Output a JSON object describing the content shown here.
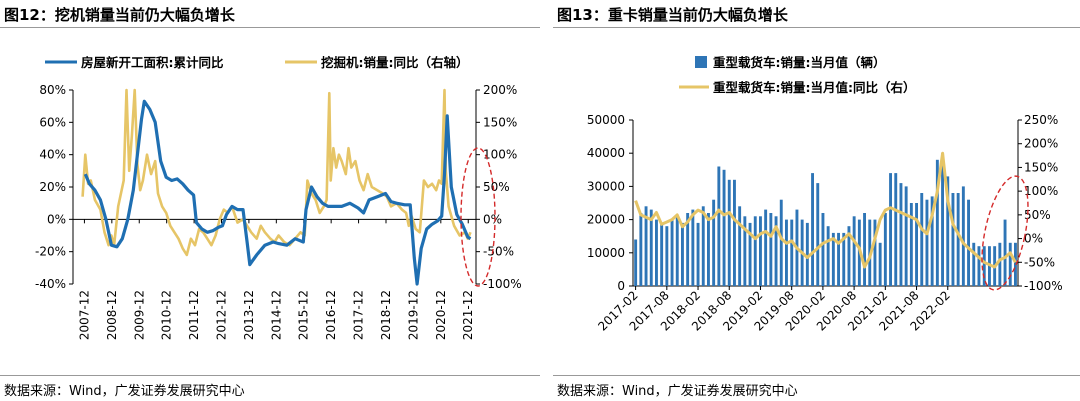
{
  "figures": [
    {
      "title": "图12：挖机销量当前仍大幅负增长",
      "source": "数据来源：Wind，广发证券发展研究中心",
      "chart_data": {
        "type": "line",
        "legend_position": "top",
        "grid": false,
        "x_ticks": [
          "2007-12",
          "2008-12",
          "2009-12",
          "2010-12",
          "2011-12",
          "2012-12",
          "2013-12",
          "2014-12",
          "2015-12",
          "2016-12",
          "2017-12",
          "2018-12",
          "2019-12",
          "2020-12",
          "2021-12"
        ],
        "y_left": {
          "ticks": [
            "80%",
            "60%",
            "40%",
            "20%",
            "0%",
            "-20%",
            "-40%"
          ],
          "range": [
            -40,
            80
          ]
        },
        "y_right": {
          "ticks": [
            "200%",
            "150%",
            "100%",
            "50%",
            "0%",
            "-50%",
            "-100%"
          ],
          "range": [
            -100,
            200
          ]
        },
        "series": [
          {
            "name": "房屋新开工面积:累计同比",
            "axis": "left",
            "color": "#1f6fb2",
            "points": [
              [
                2007.95,
                28
              ],
              [
                2008.1,
                22
              ],
              [
                2008.3,
                18
              ],
              [
                2008.5,
                12
              ],
              [
                2008.7,
                0
              ],
              [
                2008.9,
                -16
              ],
              [
                2009.1,
                -17
              ],
              [
                2009.3,
                -12
              ],
              [
                2009.5,
                0
              ],
              [
                2009.7,
                18
              ],
              [
                2009.85,
                40
              ],
              [
                2010.0,
                62
              ],
              [
                2010.1,
                73
              ],
              [
                2010.3,
                68
              ],
              [
                2010.5,
                60
              ],
              [
                2010.7,
                36
              ],
              [
                2010.9,
                26
              ],
              [
                2011.1,
                24
              ],
              [
                2011.3,
                25
              ],
              [
                2011.5,
                22
              ],
              [
                2011.7,
                18
              ],
              [
                2011.9,
                15
              ],
              [
                2012.0,
                -2
              ],
              [
                2012.2,
                -6
              ],
              [
                2012.4,
                -8
              ],
              [
                2012.6,
                -7
              ],
              [
                2012.8,
                -5
              ],
              [
                2012.95,
                -4
              ],
              [
                2013.1,
                3
              ],
              [
                2013.3,
                8
              ],
              [
                2013.5,
                6
              ],
              [
                2013.7,
                6
              ],
              [
                2013.85,
                -14
              ],
              [
                2013.95,
                -28
              ],
              [
                2014.2,
                -22
              ],
              [
                2014.5,
                -16
              ],
              [
                2014.8,
                -14
              ],
              [
                2015.0,
                -15
              ],
              [
                2015.3,
                -16
              ],
              [
                2015.6,
                -12
              ],
              [
                2015.9,
                -14
              ],
              [
                2016.0,
                6
              ],
              [
                2016.2,
                20
              ],
              [
                2016.4,
                14
              ],
              [
                2016.6,
                10
              ],
              [
                2016.8,
                8
              ],
              [
                2017.0,
                8
              ],
              [
                2017.3,
                8
              ],
              [
                2017.6,
                10
              ],
              [
                2017.9,
                7
              ],
              [
                2018.1,
                4
              ],
              [
                2018.3,
                12
              ],
              [
                2018.6,
                14
              ],
              [
                2018.9,
                16
              ],
              [
                2019.1,
                11
              ],
              [
                2019.3,
                10
              ],
              [
                2019.6,
                9
              ],
              [
                2019.8,
                9
              ],
              [
                2019.95,
                -24
              ],
              [
                2020.05,
                -40
              ],
              [
                2020.2,
                -18
              ],
              [
                2020.4,
                -6
              ],
              [
                2020.6,
                -3
              ],
              [
                2020.8,
                -1
              ],
              [
                2020.95,
                2
              ],
              [
                2021.05,
                28
              ],
              [
                2021.15,
                64
              ],
              [
                2021.3,
                20
              ],
              [
                2021.5,
                3
              ],
              [
                2021.7,
                -3
              ],
              [
                2021.9,
                -11
              ],
              [
                2022.0,
                -12
              ]
            ]
          },
          {
            "name": "挖掘机:销量:同比（右轴）",
            "axis": "right",
            "color": "#e6c567",
            "points": [
              [
                2007.85,
                35
              ],
              [
                2007.95,
                100
              ],
              [
                2008.05,
                55
              ],
              [
                2008.15,
                60
              ],
              [
                2008.3,
                30
              ],
              [
                2008.5,
                15
              ],
              [
                2008.65,
                -20
              ],
              [
                2008.8,
                -40
              ],
              [
                2008.9,
                -25
              ],
              [
                2009.0,
                -40
              ],
              [
                2009.15,
                20
              ],
              [
                2009.35,
                60
              ],
              [
                2009.45,
                200
              ],
              [
                2009.55,
                75
              ],
              [
                2009.65,
                130
              ],
              [
                2009.75,
                200
              ],
              [
                2009.85,
                85
              ],
              [
                2009.95,
                45
              ],
              [
                2010.05,
                60
              ],
              [
                2010.2,
                100
              ],
              [
                2010.35,
                70
              ],
              [
                2010.5,
                90
              ],
              [
                2010.6,
                40
              ],
              [
                2010.75,
                20
              ],
              [
                2010.9,
                10
              ],
              [
                2011.05,
                -10
              ],
              [
                2011.2,
                -20
              ],
              [
                2011.35,
                -30
              ],
              [
                2011.5,
                -45
              ],
              [
                2011.65,
                -55
              ],
              [
                2011.8,
                -30
              ],
              [
                2011.95,
                -40
              ],
              [
                2012.1,
                -15
              ],
              [
                2012.25,
                -20
              ],
              [
                2012.4,
                -30
              ],
              [
                2012.55,
                -40
              ],
              [
                2012.7,
                -25
              ],
              [
                2012.85,
                0
              ],
              [
                2013.0,
                15
              ],
              [
                2013.15,
                10
              ],
              [
                2013.3,
                20
              ],
              [
                2013.5,
                -5
              ],
              [
                2013.7,
                0
              ],
              [
                2013.85,
                -10
              ],
              [
                2014.0,
                -20
              ],
              [
                2014.2,
                -30
              ],
              [
                2014.35,
                -10
              ],
              [
                2014.5,
                -20
              ],
              [
                2014.7,
                -30
              ],
              [
                2014.85,
                -35
              ],
              [
                2015.0,
                -25
              ],
              [
                2015.2,
                -35
              ],
              [
                2015.4,
                -40
              ],
              [
                2015.6,
                -30
              ],
              [
                2015.8,
                -20
              ],
              [
                2015.95,
                -25
              ],
              [
                2016.05,
                60
              ],
              [
                2016.2,
                40
              ],
              [
                2016.35,
                30
              ],
              [
                2016.5,
                10
              ],
              [
                2016.65,
                20
              ],
              [
                2016.75,
                30
              ],
              [
                2016.85,
                195
              ],
              [
                2016.9,
                60
              ],
              [
                2017.0,
                110
              ],
              [
                2017.1,
                80
              ],
              [
                2017.2,
                100
              ],
              [
                2017.3,
                90
              ],
              [
                2017.45,
                70
              ],
              [
                2017.55,
                110
              ],
              [
                2017.65,
                80
              ],
              [
                2017.8,
                90
              ],
              [
                2017.95,
                60
              ],
              [
                2018.1,
                45
              ],
              [
                2018.25,
                70
              ],
              [
                2018.4,
                50
              ],
              [
                2018.6,
                45
              ],
              [
                2018.8,
                40
              ],
              [
                2018.95,
                35
              ],
              [
                2019.1,
                20
              ],
              [
                2019.3,
                25
              ],
              [
                2019.5,
                15
              ],
              [
                2019.65,
                10
              ],
              [
                2019.75,
                -10
              ],
              [
                2019.85,
                5
              ],
              [
                2020.0,
                -15
              ],
              [
                2020.15,
                -20
              ],
              [
                2020.3,
                60
              ],
              [
                2020.45,
                50
              ],
              [
                2020.6,
                55
              ],
              [
                2020.75,
                45
              ],
              [
                2020.85,
                60
              ],
              [
                2020.95,
                55
              ],
              [
                2021.0,
                130
              ],
              [
                2021.05,
                200
              ],
              [
                2021.1,
                75
              ],
              [
                2021.2,
                20
              ],
              [
                2021.4,
                -10
              ],
              [
                2021.6,
                -25
              ],
              [
                2021.8,
                -20
              ],
              [
                2021.9,
                -30
              ],
              [
                2022.0,
                -20
              ]
            ]
          }
        ]
      }
    },
    {
      "title": "图13：重卡销量当前仍大幅负增长",
      "source": "数据来源：Wind，广发证券发展研究中心",
      "chart_data": {
        "type": "bar",
        "legend_position": "top",
        "grid": false,
        "x_ticks": [
          "2017-02",
          "2017-08",
          "2018-02",
          "2018-08",
          "2019-02",
          "2019-08",
          "2020-02",
          "2020-08",
          "2021-02",
          "2021-08",
          "2022-02"
        ],
        "y_left": {
          "ticks": [
            "50000",
            "40000",
            "30000",
            "20000",
            "10000",
            "0"
          ],
          "range": [
            0,
            50000
          ]
        },
        "y_right": {
          "ticks": [
            "250%",
            "200%",
            "150%",
            "100%",
            "50%",
            "0%",
            "-50%",
            "-100%"
          ],
          "range": [
            -100,
            250
          ]
        },
        "series": [
          {
            "name": "重型载货车:销量:当月值（辆）",
            "axis": "left",
            "type": "bar",
            "color": "#2e75b6",
            "values": [
              14000,
              22000,
              24000,
              23000,
              20000,
              19000,
              18000,
              20000,
              21000,
              19000,
              22000,
              23000,
              19000,
              24000,
              22000,
              26000,
              36000,
              35000,
              32000,
              32000,
              24000,
              21000,
              19000,
              21000,
              21000,
              23000,
              22000,
              21000,
              26000,
              20000,
              20000,
              23000,
              20000,
              19000,
              34000,
              31000,
              22000,
              18000,
              16000,
              16000,
              16000,
              18000,
              21000,
              20000,
              22000,
              20000,
              20000,
              13000,
              22000,
              34000,
              34000,
              31000,
              30000,
              25000,
              25000,
              28000,
              26000,
              27000,
              38000,
              40000,
              33000,
              28000,
              28000,
              30000,
              26000,
              13000,
              12000,
              12000,
              12000,
              12000,
              13000,
              20000,
              13000,
              13000
            ],
            "x_start": "2017-02"
          },
          {
            "name": "重型载货车:销量:当月值:同比（右）",
            "axis": "right",
            "type": "line",
            "color": "#e6c567",
            "values": [
              80,
              50,
              45,
              40,
              55,
              30,
              35,
              40,
              50,
              25,
              35,
              50,
              60,
              55,
              40,
              45,
              60,
              50,
              55,
              40,
              30,
              20,
              10,
              0,
              10,
              15,
              5,
              25,
              0,
              -10,
              -5,
              -20,
              -30,
              -40,
              -30,
              -20,
              -10,
              -5,
              0,
              -10,
              0,
              10,
              -5,
              -20,
              -60,
              -40,
              0,
              40,
              60,
              65,
              60,
              55,
              50,
              45,
              40,
              20,
              10,
              50,
              100,
              180,
              80,
              30,
              10,
              -10,
              -20,
              -30,
              -40,
              -50,
              -55,
              -60,
              -45,
              -40,
              -30,
              -50
            ],
            "x_start": "2017-02"
          }
        ]
      }
    }
  ]
}
